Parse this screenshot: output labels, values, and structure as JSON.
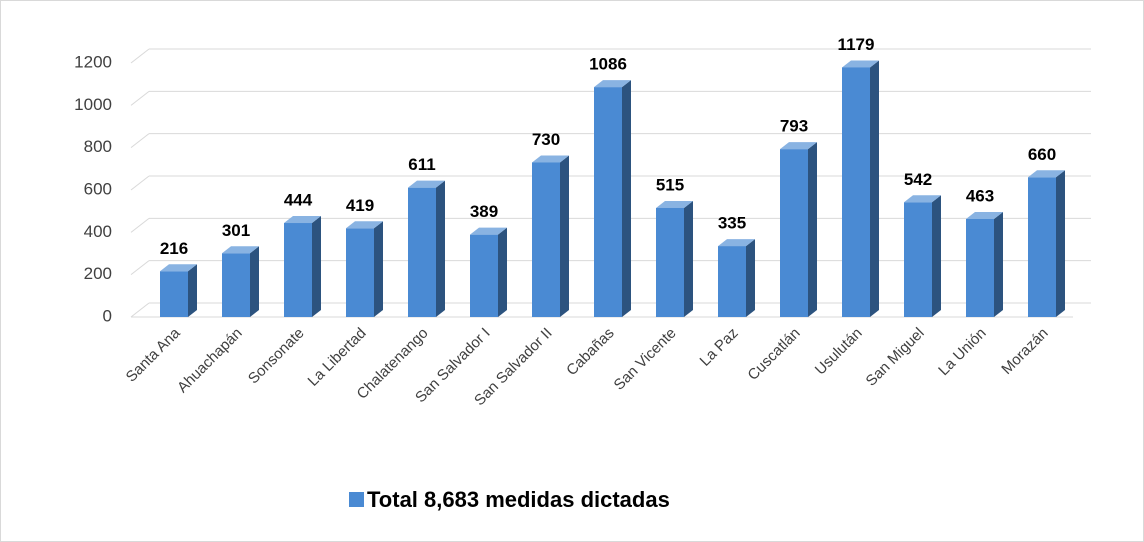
{
  "chart_data": {
    "type": "bar3d",
    "categories": [
      "Santa Ana",
      "Ahuachapán",
      "Sonsonate",
      "La Libertad",
      "Chalatenango",
      "San Salvador I",
      "San Salvador II",
      "Cabañas",
      "San Vicente",
      "La Paz",
      "Cuscatlán",
      "Usulután",
      "San Miguel",
      "La Unión",
      "Morazán"
    ],
    "series": [
      {
        "name": "Total 8,683 medidas dictadas",
        "color": "#4a8ad3",
        "values": [
          216,
          301,
          444,
          419,
          611,
          389,
          730,
          1086,
          515,
          335,
          793,
          1179,
          542,
          463,
          660
        ]
      }
    ],
    "ylim": [
      0,
      1200
    ],
    "yticks": [
      0,
      200,
      400,
      600,
      800,
      1000,
      1200
    ],
    "grid": true,
    "legend": "bottom"
  }
}
